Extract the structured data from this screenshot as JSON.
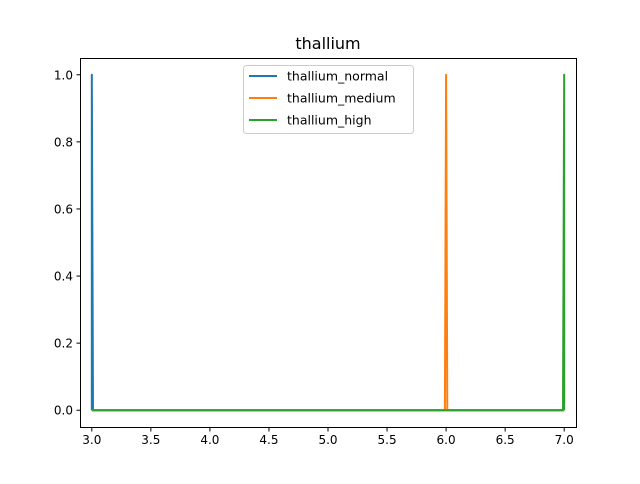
{
  "chart_data": {
    "type": "line",
    "title": "thallium",
    "xlabel": "",
    "ylabel": "",
    "xlim": [
      2.9,
      7.1
    ],
    "ylim": [
      -0.05,
      1.05
    ],
    "x_ticks": [
      3.0,
      3.5,
      4.0,
      4.5,
      5.0,
      5.5,
      6.0,
      6.5,
      7.0
    ],
    "x_tick_labels": [
      "3.0",
      "3.5",
      "4.0",
      "4.5",
      "5.0",
      "5.5",
      "6.0",
      "6.5",
      "7.0"
    ],
    "y_ticks": [
      0.0,
      0.2,
      0.4,
      0.6,
      0.8,
      1.0
    ],
    "y_tick_labels": [
      "0.0",
      "0.2",
      "0.4",
      "0.6",
      "0.8",
      "1.0"
    ],
    "grid": false,
    "legend_placement": "upper-center",
    "series": [
      {
        "name": "thallium_normal",
        "color": "#1f77b4",
        "x": [
          3.0,
          3.0,
          3.01,
          7.0
        ],
        "y": [
          0.0,
          1.0,
          0.0,
          0.0
        ]
      },
      {
        "name": "thallium_medium",
        "color": "#ff7f0e",
        "x": [
          3.0,
          5.99,
          6.0,
          6.01,
          7.0
        ],
        "y": [
          0.0,
          0.0,
          1.0,
          0.0,
          0.0
        ]
      },
      {
        "name": "thallium_high",
        "color": "#2ca02c",
        "x": [
          3.0,
          6.99,
          7.0,
          7.0
        ],
        "y": [
          0.0,
          0.0,
          1.0,
          0.0
        ]
      }
    ]
  }
}
